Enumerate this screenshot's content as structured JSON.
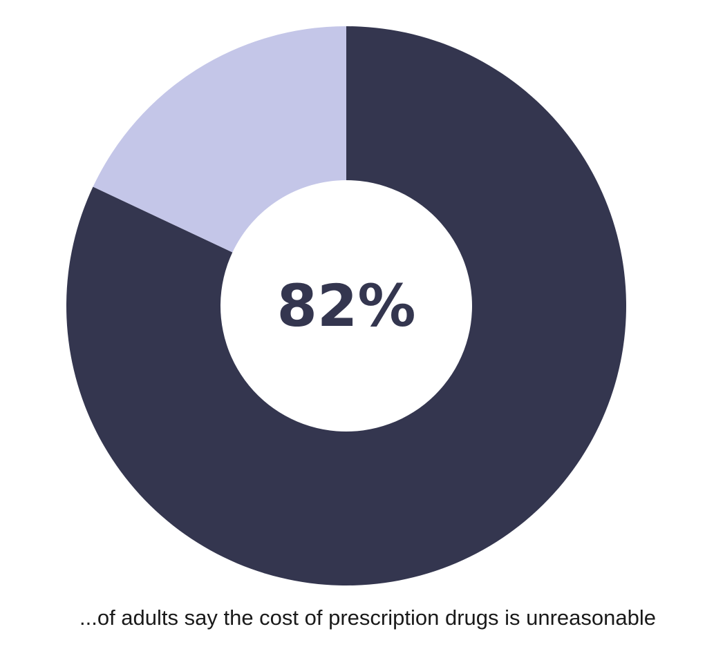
{
  "chart_data": {
    "type": "pie",
    "donut": true,
    "values": [
      82,
      18
    ],
    "value_labels": [
      "82%",
      null
    ],
    "colors": [
      "#34364f",
      "#c4c6e8"
    ],
    "caption": "...of adults say the cost of prescription drugs is unreasonable"
  }
}
